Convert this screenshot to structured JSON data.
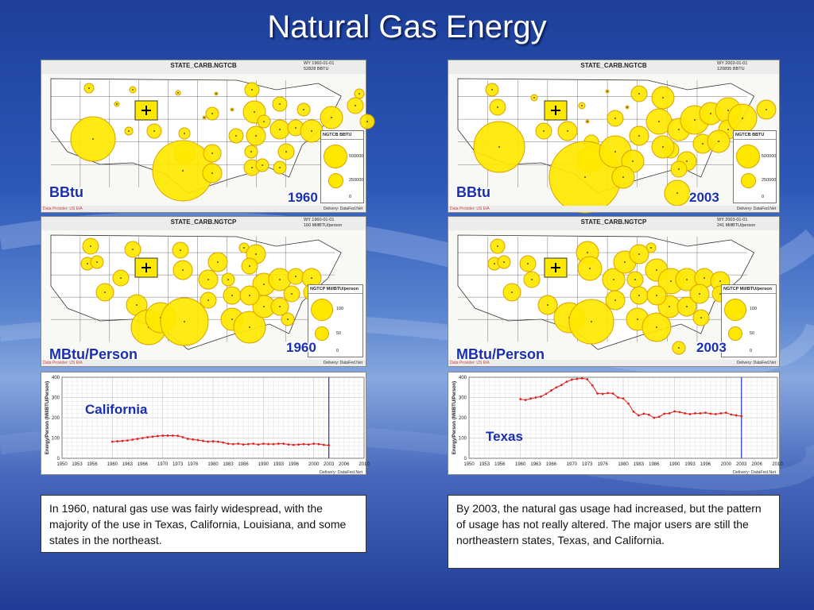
{
  "slide": {
    "title": "Natural Gas Energy"
  },
  "maps": [
    {
      "id": "bbtu-1960",
      "variable": "STATE_CARB.NGTCB",
      "meta_line1": "WY 1960-01-01",
      "meta_line2": "52828 BBTU",
      "legend_title": "NGTCB BBTU",
      "legend_values": [
        "500000",
        "250000",
        "0"
      ],
      "unit_label": "BBtu",
      "year_label": "1960",
      "provider": "Data Provider: US EIA",
      "delivery": "Delivery: DataFed.Net"
    },
    {
      "id": "bbtu-2003",
      "variable": "STATE_CARB.NGTCB",
      "meta_line1": "WY 2003-01-01",
      "meta_line2": "120895 BBTU",
      "legend_title": "NGTCB BBTU",
      "legend_values": [
        "500000",
        "250000",
        "0"
      ],
      "unit_label": "BBtu",
      "year_label": "2003",
      "provider": "Data Provider: US EIA",
      "delivery": "Delivery: DataFed.Net"
    },
    {
      "id": "mbtu-1960",
      "variable": "STATE_CARB.NGTCP",
      "meta_line1": "WY 1960-01-01",
      "meta_line2": "160 MillBTU/person",
      "legend_title": "NGTCP MillBTU/person",
      "legend_values": [
        "100",
        "50",
        "0"
      ],
      "unit_label": "MBtu/Person",
      "year_label": "1960",
      "provider": "Data Provider: US EIA",
      "delivery": "Delivery: DataFed.Net"
    },
    {
      "id": "mbtu-2003",
      "variable": "STATE_CARB.NGTCP",
      "meta_line1": "WY 2003-01-01",
      "meta_line2": "241 MillBTU/person",
      "legend_title": "NGTCP MillBTU/person",
      "legend_values": [
        "100",
        "50",
        "0"
      ],
      "unit_label": "MBtu/Person",
      "year_label": "2003",
      "provider": "Data Provider: US EIA",
      "delivery": "Delivery: DataFed.Net"
    }
  ],
  "chart_data": [
    {
      "type": "line",
      "label": "California",
      "ylabel": "Energy/Person (MillBTU/Person)",
      "ylim": [
        0,
        400
      ],
      "xlim": [
        1950,
        2010
      ],
      "yticks": [
        "0",
        "100",
        "200",
        "300",
        "400"
      ],
      "xticks": [
        "1950",
        "1953",
        "1956",
        "1960",
        "1963",
        "1966",
        "1970",
        "1973",
        "1976",
        "1980",
        "1983",
        "1986",
        "1990",
        "1993",
        "1996",
        "2000",
        "2003",
        "2006",
        "2010"
      ],
      "marker_year": 2003,
      "delivery": "Delivery: DataFed.Net",
      "x": [
        1960,
        1961,
        1962,
        1963,
        1964,
        1965,
        1966,
        1967,
        1968,
        1969,
        1970,
        1971,
        1972,
        1973,
        1974,
        1975,
        1976,
        1977,
        1978,
        1979,
        1980,
        1981,
        1982,
        1983,
        1984,
        1985,
        1986,
        1987,
        1988,
        1989,
        1990,
        1991,
        1992,
        1993,
        1994,
        1995,
        1996,
        1997,
        1998,
        1999,
        2000,
        2001,
        2002,
        2003
      ],
      "y": [
        82,
        84,
        86,
        88,
        92,
        96,
        100,
        104,
        107,
        110,
        112,
        112,
        112,
        111,
        104,
        96,
        93,
        90,
        86,
        82,
        84,
        82,
        78,
        72,
        70,
        72,
        68,
        70,
        72,
        68,
        72,
        70,
        70,
        72,
        72,
        68,
        66,
        68,
        70,
        68,
        72,
        70,
        66,
        64
      ]
    },
    {
      "type": "line",
      "label": "Texas",
      "ylabel": "Energy/Person (MillBTU/Person)",
      "ylim": [
        0,
        400
      ],
      "xlim": [
        1950,
        2010
      ],
      "yticks": [
        "0",
        "100",
        "200",
        "300",
        "400"
      ],
      "xticks": [
        "1950",
        "1953",
        "1956",
        "1960",
        "1963",
        "1966",
        "1970",
        "1973",
        "1976",
        "1980",
        "1983",
        "1986",
        "1990",
        "1993",
        "1996",
        "2000",
        "2003",
        "2006",
        "2010"
      ],
      "marker_year": 2003,
      "delivery": "Delivery: DataFed.Net",
      "x": [
        1960,
        1961,
        1962,
        1963,
        1964,
        1965,
        1966,
        1967,
        1968,
        1969,
        1970,
        1971,
        1972,
        1973,
        1974,
        1975,
        1976,
        1977,
        1978,
        1979,
        1980,
        1981,
        1982,
        1983,
        1984,
        1985,
        1986,
        1987,
        1988,
        1989,
        1990,
        1991,
        1992,
        1993,
        1994,
        1995,
        1996,
        1997,
        1998,
        1999,
        2000,
        2001,
        2002,
        2003
      ],
      "y": [
        292,
        288,
        295,
        300,
        305,
        318,
        335,
        350,
        362,
        378,
        388,
        392,
        395,
        390,
        360,
        320,
        318,
        322,
        320,
        300,
        295,
        270,
        230,
        212,
        220,
        215,
        200,
        205,
        220,
        222,
        232,
        228,
        222,
        218,
        222,
        222,
        225,
        220,
        218,
        222,
        225,
        216,
        212,
        208
      ]
    }
  ],
  "notes": {
    "left": "In 1960, natural gas use was fairly widespread, with the majority of the use in Texas, California, Louisiana, and some states in the northeast.",
    "right": "By 2003, the natural gas usage had increased, but the pattern of usage has not really altered. The major users are still the northeastern states, Texas, and California."
  }
}
